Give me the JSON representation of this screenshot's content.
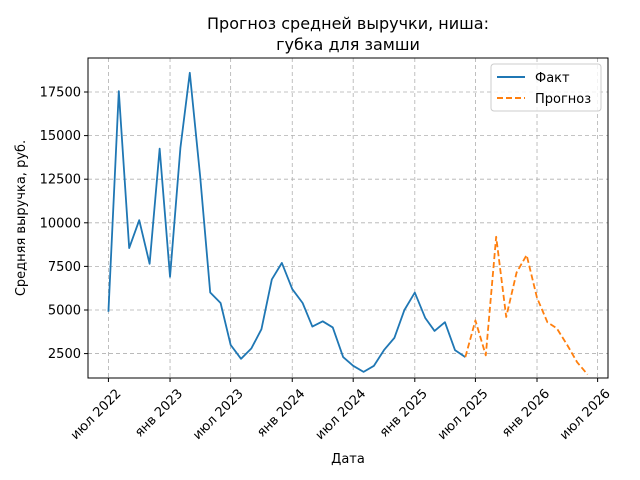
{
  "chart_data": {
    "type": "line",
    "title_lines": [
      "Прогноз средней выручки, ниша:",
      "губка для замши"
    ],
    "xlabel": "Дата",
    "ylabel": "Средняя выручка, руб.",
    "x_ticks": [
      {
        "date": "2022-07-01",
        "label": "июл 2022"
      },
      {
        "date": "2023-01-01",
        "label": "янв 2023"
      },
      {
        "date": "2023-07-01",
        "label": "июл 2023"
      },
      {
        "date": "2024-01-01",
        "label": "янв 2024"
      },
      {
        "date": "2024-07-01",
        "label": "июл 2024"
      },
      {
        "date": "2025-01-01",
        "label": "янв 2025"
      },
      {
        "date": "2025-07-01",
        "label": "июл 2025"
      },
      {
        "date": "2026-01-01",
        "label": "янв 2026"
      },
      {
        "date": "2026-07-01",
        "label": "июл 2026"
      }
    ],
    "y_ticks": [
      2500,
      5000,
      7500,
      10000,
      12500,
      15000,
      17500
    ],
    "y_tick_labels": [
      "2500",
      "5000",
      "7500",
      "10000",
      "12500",
      "15000",
      "17500"
    ],
    "xlim": [
      "2022-05-01",
      "2026-08-01"
    ],
    "ylim": [
      1100,
      19450
    ],
    "grid": true,
    "legend_position": "top-right",
    "series": [
      {
        "name": "Факт",
        "color": "#1f77b4",
        "style": "solid",
        "points": [
          {
            "x": "2022-07-01",
            "y": 4900
          },
          {
            "x": "2022-08-01",
            "y": 17550
          },
          {
            "x": "2022-09-01",
            "y": 8550
          },
          {
            "x": "2022-10-01",
            "y": 10150
          },
          {
            "x": "2022-11-01",
            "y": 7650
          },
          {
            "x": "2022-12-01",
            "y": 14250
          },
          {
            "x": "2023-01-01",
            "y": 6900
          },
          {
            "x": "2023-02-01",
            "y": 14300
          },
          {
            "x": "2023-03-01",
            "y": 18600
          },
          {
            "x": "2023-04-01",
            "y": 12650
          },
          {
            "x": "2023-05-01",
            "y": 6000
          },
          {
            "x": "2023-06-01",
            "y": 5400
          },
          {
            "x": "2023-07-01",
            "y": 3000
          },
          {
            "x": "2023-08-01",
            "y": 2200
          },
          {
            "x": "2023-09-01",
            "y": 2800
          },
          {
            "x": "2023-10-01",
            "y": 3900
          },
          {
            "x": "2023-11-01",
            "y": 6750
          },
          {
            "x": "2023-12-01",
            "y": 7700
          },
          {
            "x": "2024-01-01",
            "y": 6200
          },
          {
            "x": "2024-02-01",
            "y": 5400
          },
          {
            "x": "2024-03-01",
            "y": 4050
          },
          {
            "x": "2024-04-01",
            "y": 4350
          },
          {
            "x": "2024-05-01",
            "y": 4000
          },
          {
            "x": "2024-06-01",
            "y": 2300
          },
          {
            "x": "2024-07-01",
            "y": 1800
          },
          {
            "x": "2024-08-01",
            "y": 1450
          },
          {
            "x": "2024-09-01",
            "y": 1800
          },
          {
            "x": "2024-10-01",
            "y": 2700
          },
          {
            "x": "2024-11-01",
            "y": 3400
          },
          {
            "x": "2024-12-01",
            "y": 5000
          },
          {
            "x": "2025-01-01",
            "y": 6000
          },
          {
            "x": "2025-02-01",
            "y": 4550
          },
          {
            "x": "2025-03-01",
            "y": 3800
          },
          {
            "x": "2025-04-01",
            "y": 4300
          },
          {
            "x": "2025-05-01",
            "y": 2700
          },
          {
            "x": "2025-06-01",
            "y": 2300
          }
        ]
      },
      {
        "name": "Прогноз",
        "color": "#ff7f0e",
        "style": "dashed",
        "points": [
          {
            "x": "2025-06-01",
            "y": 2300
          },
          {
            "x": "2025-07-01",
            "y": 4400
          },
          {
            "x": "2025-08-01",
            "y": 2400
          },
          {
            "x": "2025-09-01",
            "y": 9200
          },
          {
            "x": "2025-10-01",
            "y": 4600
          },
          {
            "x": "2025-11-01",
            "y": 7150
          },
          {
            "x": "2025-12-01",
            "y": 8150
          },
          {
            "x": "2026-01-01",
            "y": 5700
          },
          {
            "x": "2026-02-01",
            "y": 4300
          },
          {
            "x": "2026-03-01",
            "y": 3950
          },
          {
            "x": "2026-04-01",
            "y": 3000
          },
          {
            "x": "2026-05-01",
            "y": 2000
          },
          {
            "x": "2026-06-01",
            "y": 1300
          }
        ]
      }
    ]
  }
}
